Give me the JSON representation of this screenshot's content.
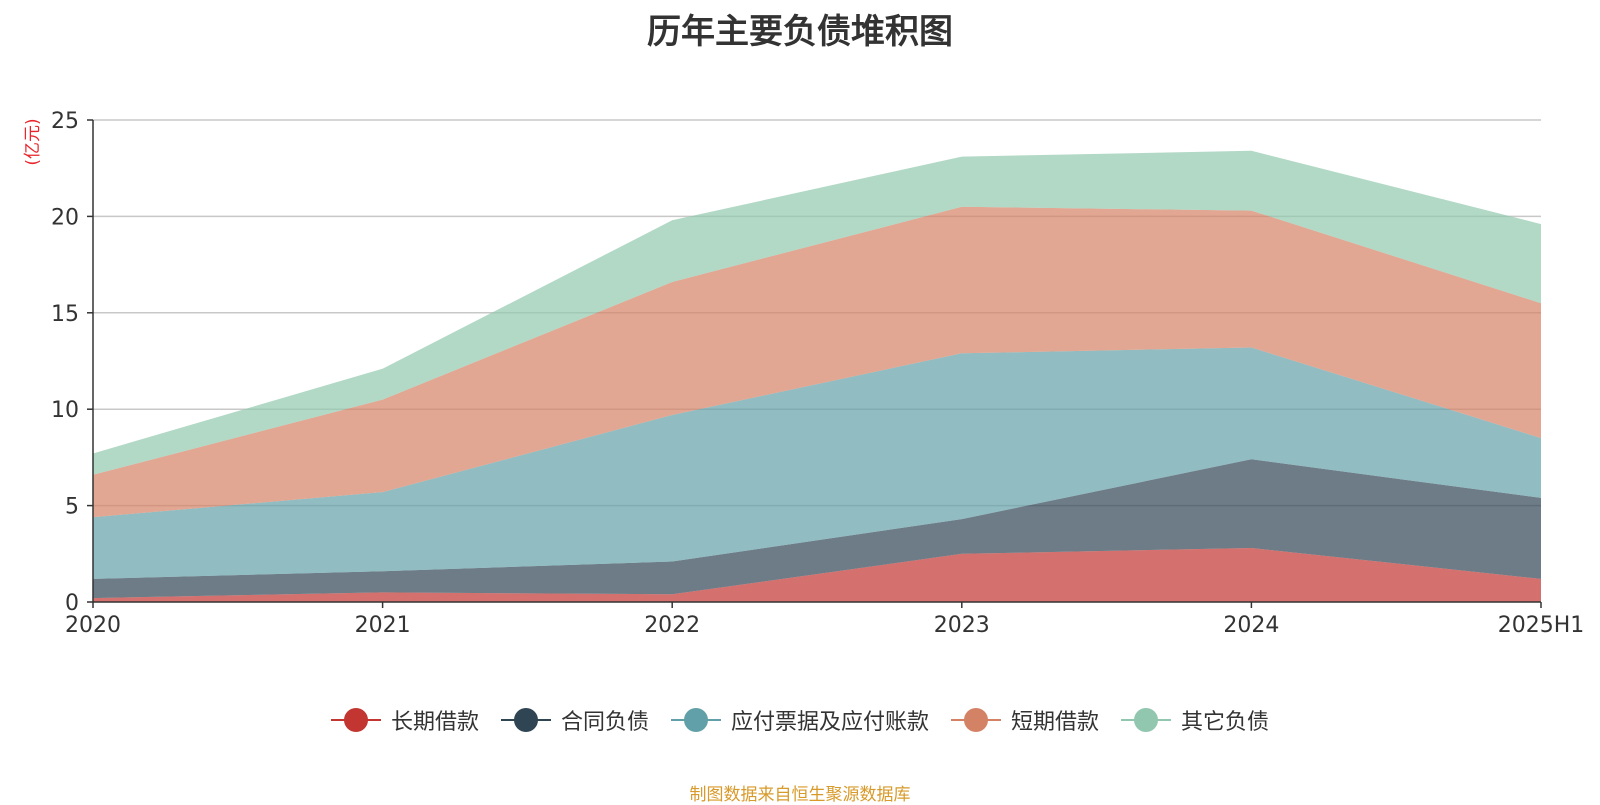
{
  "chart_data": {
    "type": "area",
    "stacked": true,
    "title": "历年主要负债堆积图",
    "ylabel": "(亿元)",
    "xlabel": "",
    "categories": [
      "2020",
      "2021",
      "2022",
      "2023",
      "2024",
      "2025H1"
    ],
    "ylim": [
      0,
      25
    ],
    "yticks": [
      0,
      5,
      10,
      15,
      20,
      25
    ],
    "grid": true,
    "legend_position": "bottom",
    "series": [
      {
        "name": "长期借款",
        "color": "#c23531",
        "values": [
          0.2,
          0.5,
          0.4,
          2.5,
          2.8,
          1.2
        ]
      },
      {
        "name": "合同负债",
        "color": "#2f4554",
        "values": [
          1.0,
          1.1,
          1.7,
          1.8,
          4.6,
          4.2
        ]
      },
      {
        "name": "应付票据及应付账款",
        "color": "#61a0a8",
        "values": [
          3.2,
          4.1,
          7.6,
          8.6,
          5.8,
          3.1
        ]
      },
      {
        "name": "短期借款",
        "color": "#d48265",
        "values": [
          2.2,
          4.8,
          6.9,
          7.6,
          7.1,
          7.0
        ]
      },
      {
        "name": "其它负债",
        "color": "#91c7ae",
        "values": [
          1.1,
          1.6,
          3.2,
          2.6,
          3.1,
          4.1
        ]
      }
    ],
    "source_note": "制图数据来自恒生聚源数据库"
  }
}
